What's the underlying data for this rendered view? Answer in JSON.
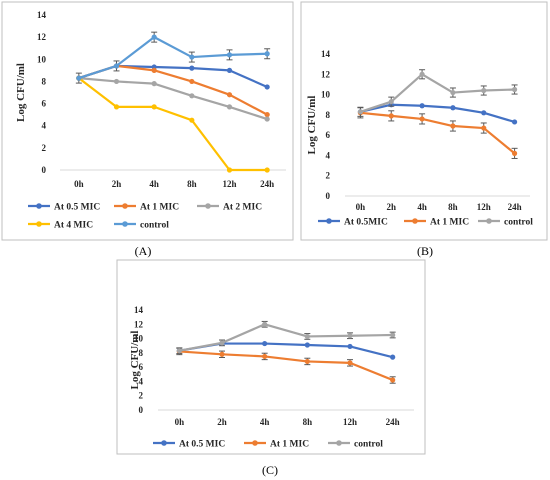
{
  "chart_data": [
    {
      "panel": "(A)",
      "type": "line",
      "ylabel": "Log CFU/ml",
      "ylim": [
        0,
        14
      ],
      "ystep": 2,
      "categories": [
        "0h",
        "2h",
        "4h",
        "8h",
        "12h",
        "24h"
      ],
      "legend_position": "bottom",
      "series": [
        {
          "name": "At 0.5 MIC",
          "color": "#4472c4",
          "values": [
            8.3,
            9.4,
            9.3,
            9.2,
            9.0,
            7.5
          ],
          "errors": null
        },
        {
          "name": "At 1 MIC",
          "color": "#ed7d31",
          "values": [
            8.3,
            9.4,
            9.0,
            8.0,
            6.8,
            5.0
          ],
          "errors": null
        },
        {
          "name": "At 2 MIC",
          "color": "#a5a5a5",
          "values": [
            8.3,
            8.0,
            7.8,
            6.7,
            5.7,
            4.6
          ],
          "errors": null
        },
        {
          "name": "At 4 MIC",
          "color": "#ffc000",
          "values": [
            8.3,
            5.7,
            5.7,
            4.5,
            0,
            0
          ],
          "errors": null
        },
        {
          "name": "control",
          "color": "#5b9bd5",
          "values": [
            8.3,
            9.4,
            12.0,
            10.2,
            10.4,
            10.5
          ],
          "errors": [
            0.45,
            0.45,
            0.45,
            0.45,
            0.45,
            0.45
          ]
        }
      ]
    },
    {
      "panel": "(B)",
      "type": "line",
      "ylabel": "Log CFU/ml",
      "ylim": [
        0,
        14
      ],
      "ystep": 2,
      "categories": [
        "0h",
        "2h",
        "4h",
        "8h",
        "12h",
        "24h"
      ],
      "legend_position": "bottom",
      "series": [
        {
          "name": "At 0.5MIC",
          "color": "#4472c4",
          "values": [
            8.3,
            9.0,
            8.9,
            8.7,
            8.2,
            7.3
          ],
          "errors": null
        },
        {
          "name": "At 1 MIC",
          "color": "#ed7d31",
          "values": [
            8.2,
            7.9,
            7.6,
            6.9,
            6.7,
            4.2
          ],
          "errors": [
            0.5,
            0.5,
            0.5,
            0.5,
            0.5,
            0.5
          ]
        },
        {
          "name": "control",
          "color": "#a5a5a5",
          "values": [
            8.3,
            9.3,
            12.0,
            10.2,
            10.4,
            10.5
          ],
          "errors": [
            0.45,
            0.45,
            0.45,
            0.45,
            0.45,
            0.45
          ]
        }
      ]
    },
    {
      "panel": "(C)",
      "type": "line",
      "ylabel": "Log CFU/ml",
      "ylim": [
        0,
        14
      ],
      "ystep": 2,
      "categories": [
        "0h",
        "2h",
        "4h",
        "8h",
        "12h",
        "24h"
      ],
      "legend_position": "bottom",
      "series": [
        {
          "name": "At 0.5 MIC",
          "color": "#4472c4",
          "values": [
            8.3,
            9.3,
            9.3,
            9.1,
            8.9,
            7.4
          ],
          "errors": null
        },
        {
          "name": "At 1 MIC",
          "color": "#ed7d31",
          "values": [
            8.2,
            7.8,
            7.5,
            6.8,
            6.6,
            4.2
          ],
          "errors": [
            0.45,
            0.45,
            0.45,
            0.45,
            0.45,
            0.45
          ]
        },
        {
          "name": "control",
          "color": "#a5a5a5",
          "values": [
            8.3,
            9.4,
            12.0,
            10.3,
            10.4,
            10.5
          ],
          "errors": [
            0.4,
            0.4,
            0.4,
            0.4,
            0.4,
            0.4
          ]
        }
      ]
    }
  ]
}
